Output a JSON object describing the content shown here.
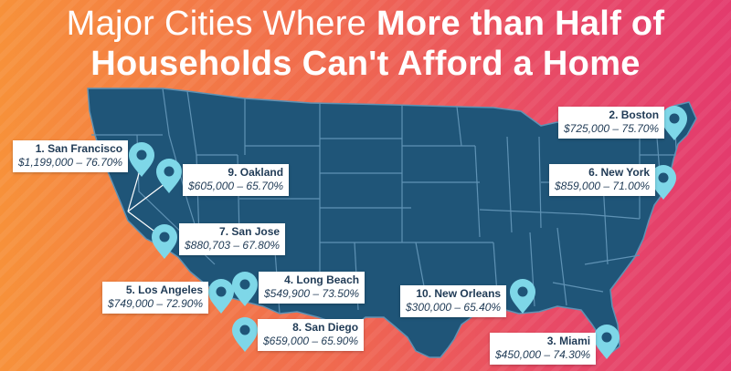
{
  "title": {
    "line1_light": "Major Cities Where ",
    "line1_bold": "More than Half of",
    "line2": "Households Can't Afford a Home"
  },
  "colors": {
    "map_fill": "#1f5578",
    "map_stroke": "#5f92b4",
    "pin": "#7ed7e8",
    "gradient_left": "#f7913a",
    "gradient_right": "#e33b6d"
  },
  "cities": [
    {
      "rank": "1. San Francisco",
      "value": "$1,199,000 – 76.70%"
    },
    {
      "rank": "2. Boston",
      "value": "$725,000 – 75.70%"
    },
    {
      "rank": "3. Miami",
      "value": "$450,000 – 74.30%"
    },
    {
      "rank": "4. Long Beach",
      "value": "$549,900 – 73.50%"
    },
    {
      "rank": "5. Los Angeles",
      "value": "$749,000 – 72.90%"
    },
    {
      "rank": "6. New York",
      "value": "$859,000 – 71.00%"
    },
    {
      "rank": "7. San Jose",
      "value": "$880,703 – 67.80%"
    },
    {
      "rank": "8. San Diego",
      "value": "$659,000 – 65.90%"
    },
    {
      "rank": "9. Oakland",
      "value": "$605,000 – 65.70%"
    },
    {
      "rank": "10. New Orleans",
      "value": "$300,000 – 65.40%"
    }
  ],
  "icons": {
    "pin": "map-pin-icon"
  }
}
